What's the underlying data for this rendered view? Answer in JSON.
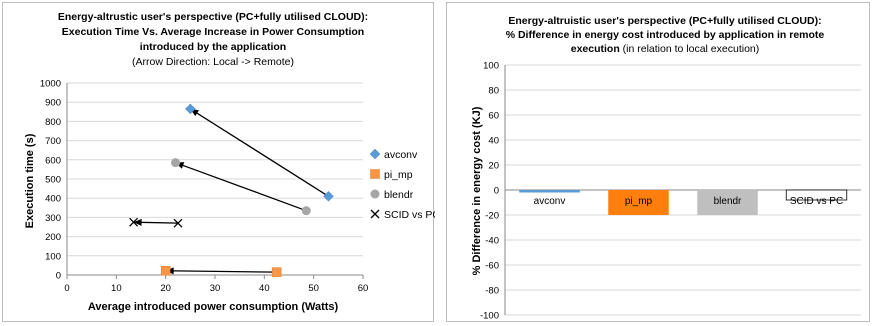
{
  "chart_data": [
    {
      "type": "scatter",
      "title_lines": [
        "Energy-altrustic user's perspective (PC+fully utilised CLOUD):",
        "Execution Time Vs. Average Increase in Power Consumption",
        "introduced by the application"
      ],
      "subtitle": "(Arrow Direction: Local -> Remote)",
      "xlabel": "Average introduced power consumption (Watts)",
      "ylabel": "Execution time (s)",
      "xlim": [
        0,
        60
      ],
      "ylim": [
        0,
        1000
      ],
      "xticks": [
        "0",
        "10",
        "20",
        "30",
        "40",
        "50",
        "60"
      ],
      "yticks": [
        "0",
        "100",
        "200",
        "300",
        "400",
        "500",
        "600",
        "700",
        "800",
        "900",
        "1000"
      ],
      "grid": "horizontal",
      "legend_position": "right",
      "series": [
        {
          "name": "avconv",
          "marker": "diamond",
          "color": "#5b9bd5",
          "points": [
            {
              "x": 53,
              "y": 410
            },
            {
              "x": 25,
              "y": 865
            }
          ]
        },
        {
          "name": "pi_mp",
          "marker": "square",
          "color": "#f79646",
          "points": [
            {
              "x": 42.5,
              "y": 15
            },
            {
              "x": 20,
              "y": 22
            }
          ]
        },
        {
          "name": "blendr",
          "marker": "circle",
          "color": "#a6a6a6",
          "points": [
            {
              "x": 48.5,
              "y": 335
            },
            {
              "x": 22,
              "y": 585
            }
          ]
        },
        {
          "name": "SCID vs PC",
          "marker": "x",
          "color": "#000000",
          "points": [
            {
              "x": 22.5,
              "y": 270
            },
            {
              "x": 13.5,
              "y": 275
            }
          ]
        }
      ],
      "arrows": [
        {
          "from": [
            53,
            410
          ],
          "to": [
            25,
            865
          ]
        },
        {
          "from": [
            48.5,
            335
          ],
          "to": [
            22,
            585
          ]
        },
        {
          "from": [
            42.5,
            15
          ],
          "to": [
            20,
            22
          ]
        },
        {
          "from": [
            22.5,
            270
          ],
          "to": [
            13.5,
            275
          ]
        }
      ]
    },
    {
      "type": "bar",
      "title_lines": [
        "Energy-altruistic user's perspective (PC+fully utilised CLOUD):",
        "% Difference in energy cost introduced by application in remote"
      ],
      "title_bold_tail": "execution",
      "title_normal_tail": " (in relation to local execution)",
      "xlabel": "",
      "ylabel": "% Difference in energy cost (KJ)",
      "ylim": [
        -100,
        100
      ],
      "yticks": [
        "100",
        "80",
        "60",
        "40",
        "20",
        "0",
        "-20",
        "-40",
        "-60",
        "-80",
        "-100"
      ],
      "grid": "horizontal",
      "categories": [
        "avconv",
        "pi_mp",
        "blendr",
        "SCID vs PC"
      ],
      "values": [
        -2,
        -20,
        -20,
        -8
      ],
      "colors": [
        "#5b9bd5",
        "#ff7f0e",
        "#bfbfbf",
        "#ffffff"
      ]
    }
  ]
}
